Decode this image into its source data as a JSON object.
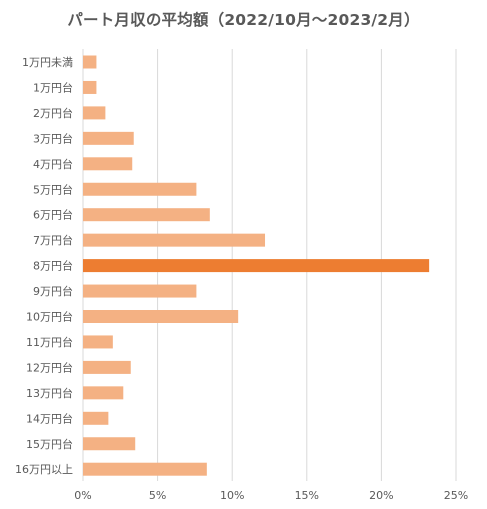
{
  "chart_data": {
    "type": "bar",
    "orientation": "horizontal",
    "title": "パート月収の平均額（2022/10月～2023/2月）",
    "categories": [
      "1万円未満",
      "1万円台",
      "2万円台",
      "3万円台",
      "4万円台",
      "5万円台",
      "6万円台",
      "7万円台",
      "8万円台",
      "9万円台",
      "10万円台",
      "11万円台",
      "12万円台",
      "13万円台",
      "14万円台",
      "15万円台",
      "16万円以上"
    ],
    "values": [
      0.9,
      0.9,
      1.5,
      3.4,
      3.3,
      7.6,
      8.5,
      12.2,
      23.2,
      7.6,
      10.4,
      2.0,
      3.2,
      2.7,
      1.7,
      3.5,
      8.3
    ],
    "highlight_index": 8,
    "x_ticks": [
      "0%",
      "5%",
      "10%",
      "15%",
      "20%",
      "25%"
    ],
    "xlim": [
      0,
      25
    ],
    "grid": "vertical",
    "colors": {
      "bar": "#f4b183",
      "highlight": "#ed7d31",
      "grid": "#d9d9d9",
      "text": "#595959"
    }
  }
}
